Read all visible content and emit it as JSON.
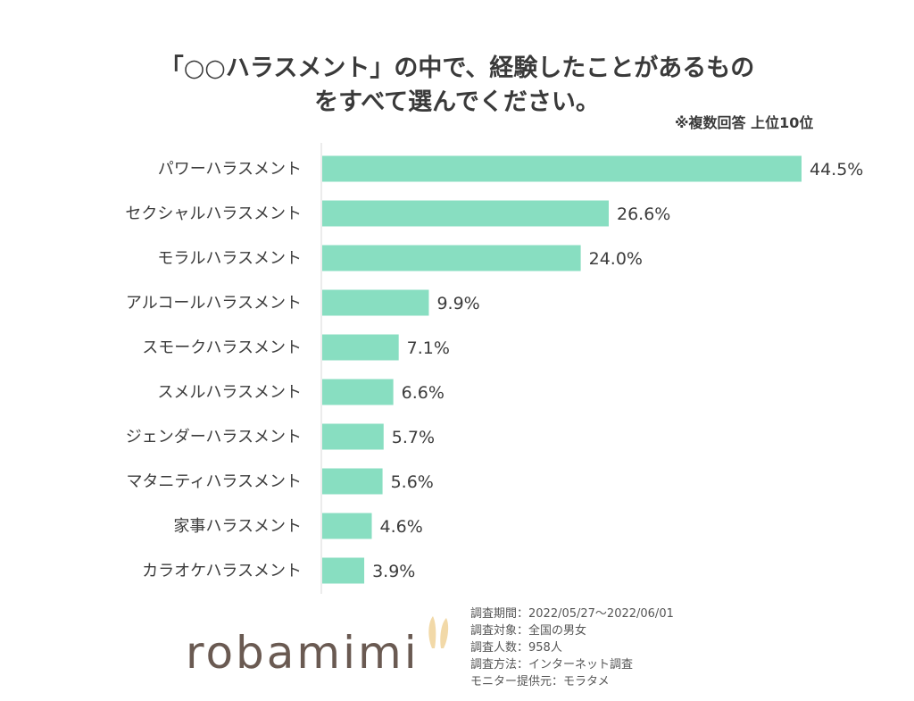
{
  "title_line1": "「○○ハラスメント」の中で、経験したことがあるもの",
  "title_line2": "をすべて選んでください。",
  "note": "※複数回答 上位10位",
  "colors": {
    "bar": "#88dec1",
    "axis": "#d9d9d9",
    "text": "#3c3c3c",
    "logo": "#6a5a52",
    "ear": "#f2d9a8"
  },
  "chart_data": {
    "type": "bar",
    "orientation": "horizontal",
    "categories": [
      "パワーハラスメント",
      "セクシャルハラスメント",
      "モラルハラスメント",
      "アルコールハラスメント",
      "スモークハラスメント",
      "スメルハラスメント",
      "ジェンダーハラスメント",
      "マタニティハラスメント",
      "家事ハラスメント",
      "カラオケハラスメント"
    ],
    "values": [
      44.5,
      26.6,
      24.0,
      9.9,
      7.1,
      6.6,
      5.7,
      5.6,
      4.6,
      3.9
    ],
    "value_labels": [
      "44.5%",
      "26.6%",
      "24.0%",
      "9.9%",
      "7.1%",
      "6.6%",
      "5.7%",
      "5.6%",
      "4.6%",
      "3.9%"
    ],
    "xlim": [
      0,
      44.5
    ],
    "grid": false,
    "legend": "none"
  },
  "logo": "robamimi",
  "survey": [
    "調査期間：2022/05/27〜2022/06/01",
    "調査対象：全国の男女",
    "調査人数：958人",
    "調査方法：インターネット調査",
    "モニター提供元：モラタメ"
  ]
}
